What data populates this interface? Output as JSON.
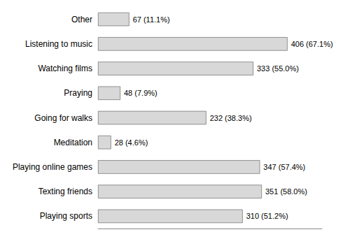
{
  "chart_data": {
    "type": "bar",
    "orientation": "horizontal",
    "categories": [
      "Playing sports",
      "Texting friends",
      "Playing online games",
      "Meditation",
      "Going for walks",
      "Praying",
      "Watching films",
      "Listening to music",
      "Other"
    ],
    "values": [
      310,
      351,
      347,
      28,
      232,
      48,
      333,
      406,
      67
    ],
    "value_labels": [
      "310 (51.2%)",
      "351 (58.0%)",
      "347 (57.4%)",
      "28 (4.6%)",
      "232 (38.3%)",
      "48 (7.9%)",
      "333 (55.0%)",
      "406 (67.1%)",
      "67 (11.1%)"
    ],
    "data_labels": true,
    "color": "#d8d8d8",
    "xlim": [
      0,
      480
    ],
    "tick_labels": "y",
    "grid": false
  }
}
